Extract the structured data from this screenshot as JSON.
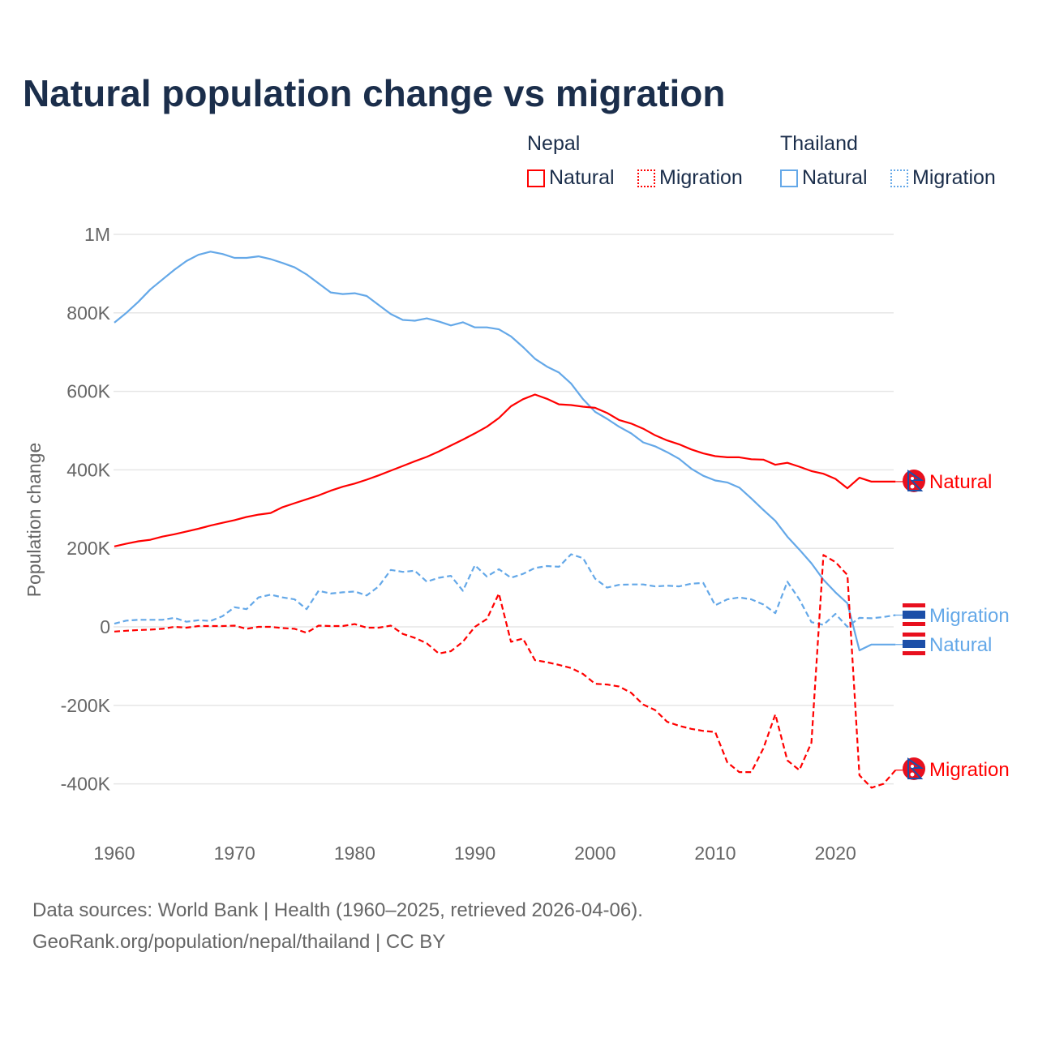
{
  "title": "Natural population change vs migration",
  "legend": {
    "groups": [
      {
        "name": "Nepal",
        "items": [
          {
            "label": "Natural",
            "style": "solid"
          },
          {
            "label": "Migration",
            "style": "dotted"
          }
        ],
        "color": "#ff0000"
      },
      {
        "name": "Thailand",
        "items": [
          {
            "label": "Natural",
            "style": "solid"
          },
          {
            "label": "Migration",
            "style": "dotted"
          }
        ],
        "color": "#64a8e8"
      }
    ]
  },
  "footer": {
    "line1": "Data sources: World Bank | Health (1960–2025, retrieved 2026-04-06).",
    "line2": "GeoRank.org/population/nepal/thailand | CC BY"
  },
  "chart_data": {
    "type": "line",
    "title": "Natural population change vs migration",
    "xlabel": "",
    "ylabel": "Population change",
    "xlim": [
      1960,
      2025
    ],
    "ylim": [
      -500000,
      1000000
    ],
    "xticks": [
      {
        "v": 1960,
        "label": "1960"
      },
      {
        "v": 1970,
        "label": "1970"
      },
      {
        "v": 1980,
        "label": "1980"
      },
      {
        "v": 1990,
        "label": "1990"
      },
      {
        "v": 2000,
        "label": "2000"
      },
      {
        "v": 2010,
        "label": "2010"
      },
      {
        "v": 2020,
        "label": "2020"
      }
    ],
    "yticks": [
      {
        "v": 1000000,
        "label": "1M"
      },
      {
        "v": 800000,
        "label": "800K"
      },
      {
        "v": 600000,
        "label": "600K"
      },
      {
        "v": 400000,
        "label": "400K"
      },
      {
        "v": 200000,
        "label": "200K"
      },
      {
        "v": 0,
        "label": "0"
      },
      {
        "v": -200000,
        "label": "-200K"
      },
      {
        "v": -400000,
        "label": "-400K"
      }
    ],
    "grid": true,
    "x_start": 1960,
    "units": "thousands",
    "series": [
      {
        "name": "Thailand Natural",
        "country": "Thailand",
        "end_label": "Natural",
        "color": "#64a8e8",
        "dash": false,
        "values": [
          775,
          800,
          828,
          860,
          885,
          910,
          932,
          948,
          956,
          950,
          940,
          940,
          944,
          937,
          927,
          916,
          898,
          875,
          852,
          848,
          850,
          843,
          820,
          797,
          782,
          780,
          786,
          778,
          768,
          776,
          763,
          763,
          758,
          740,
          713,
          683,
          663,
          648,
          620,
          580,
          548,
          530,
          510,
          493,
          470,
          460,
          445,
          428,
          403,
          385,
          373,
          368,
          355,
          327,
          298,
          270,
          230,
          197,
          162,
          120,
          88,
          60,
          -60,
          -45,
          -45,
          -45
        ]
      },
      {
        "name": "Nepal Natural",
        "country": "Nepal",
        "end_label": "Natural",
        "color": "#ff0000",
        "dash": false,
        "values": [
          205,
          212,
          218,
          222,
          230,
          236,
          243,
          250,
          258,
          265,
          272,
          280,
          286,
          290,
          305,
          315,
          325,
          335,
          347,
          357,
          365,
          375,
          386,
          398,
          410,
          422,
          433,
          447,
          462,
          477,
          493,
          510,
          532,
          562,
          580,
          592,
          581,
          567,
          565,
          561,
          558,
          545,
          527,
          518,
          505,
          488,
          475,
          465,
          452,
          442,
          435,
          432,
          432,
          427,
          426,
          413,
          418,
          408,
          397,
          390,
          377,
          353,
          380,
          370,
          370,
          370
        ]
      },
      {
        "name": "Thailand Migration",
        "country": "Thailand",
        "end_label": "Migration",
        "color": "#64a8e8",
        "dash": true,
        "values": [
          8,
          16,
          18,
          18,
          18,
          23,
          13,
          17,
          15,
          27,
          50,
          45,
          75,
          82,
          75,
          70,
          45,
          92,
          85,
          88,
          90,
          80,
          103,
          145,
          140,
          143,
          115,
          125,
          130,
          92,
          157,
          128,
          147,
          125,
          135,
          150,
          155,
          153,
          185,
          175,
          123,
          100,
          107,
          108,
          108,
          103,
          105,
          103,
          110,
          112,
          55,
          70,
          75,
          70,
          57,
          35,
          115,
          70,
          12,
          5,
          33,
          0,
          23,
          22,
          25,
          30
        ]
      },
      {
        "name": "Nepal Migration",
        "country": "Nepal",
        "end_label": "Migration",
        "color": "#ff0000",
        "dash": true,
        "values": [
          -12,
          -10,
          -8,
          -7,
          -5,
          0,
          -2,
          2,
          2,
          2,
          3,
          -5,
          0,
          0,
          -3,
          -5,
          -15,
          3,
          2,
          2,
          7,
          -2,
          -2,
          3,
          -18,
          -28,
          -42,
          -68,
          -62,
          -38,
          0,
          20,
          85,
          -38,
          -30,
          -85,
          -90,
          -97,
          -105,
          -120,
          -145,
          -147,
          -152,
          -168,
          -198,
          -212,
          -242,
          -252,
          -260,
          -265,
          -268,
          -345,
          -370,
          -370,
          -310,
          -223,
          -340,
          -365,
          -295,
          183,
          165,
          132,
          -378,
          -410,
          -400,
          -365
        ]
      }
    ]
  }
}
